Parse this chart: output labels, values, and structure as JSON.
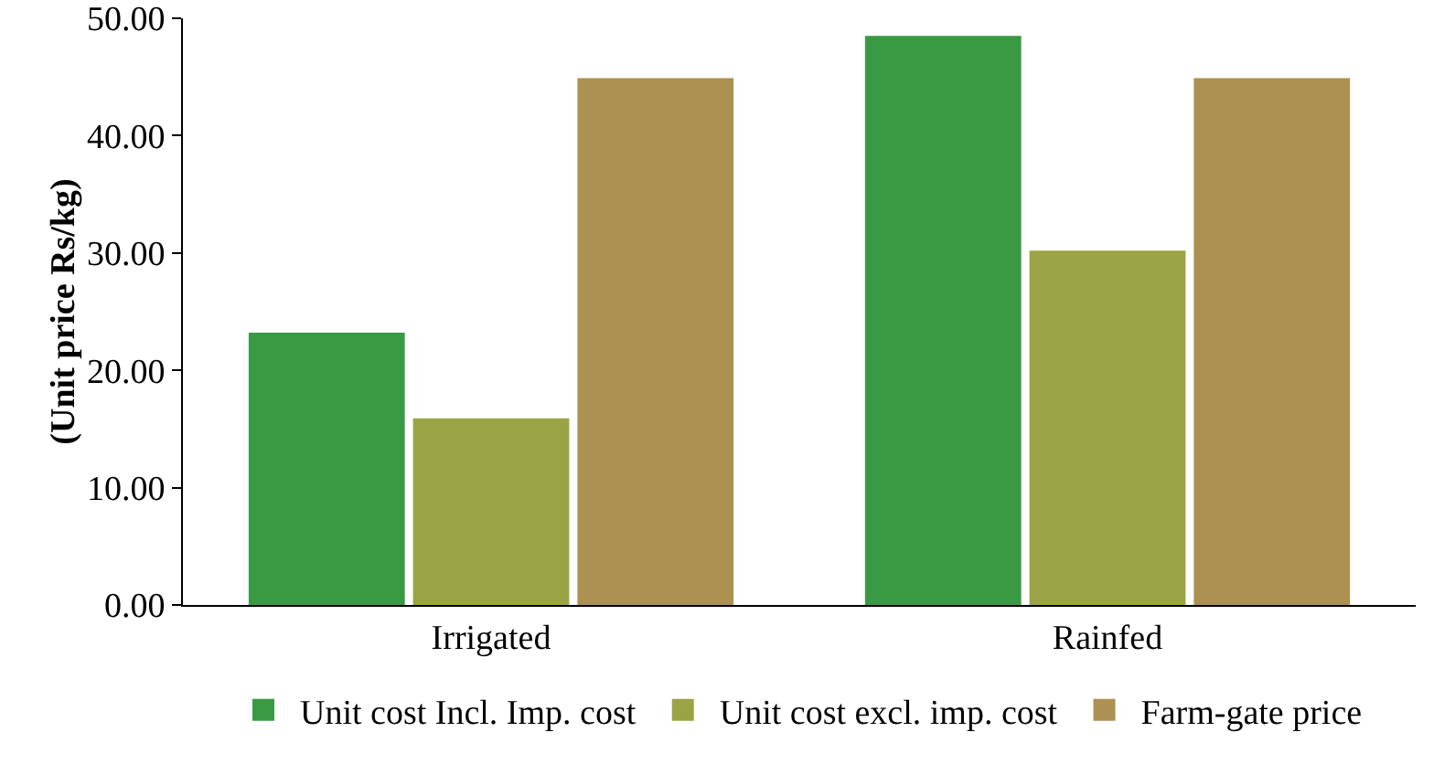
{
  "chart_data": {
    "type": "bar",
    "ylabel": "(Unit price Rs/kg)",
    "categories": [
      "Irrigated",
      "Rainfed"
    ],
    "series": [
      {
        "name": "Unit cost Incl. Imp. cost",
        "color": "#3a9a43",
        "values": [
          23.2,
          48.5
        ]
      },
      {
        "name": "Unit cost excl. imp. cost",
        "color": "#9ba445",
        "values": [
          15.9,
          30.2
        ]
      },
      {
        "name": "Farm-gate price",
        "color": "#ad9152",
        "values": [
          44.9,
          44.9
        ]
      }
    ],
    "ylim": [
      0,
      50
    ],
    "yticks": [
      {
        "value": 0,
        "label": "0.00"
      },
      {
        "value": 10,
        "label": "10.00"
      },
      {
        "value": 20,
        "label": "20.00"
      },
      {
        "value": 30,
        "label": "30.00"
      },
      {
        "value": 40,
        "label": "40.00"
      },
      {
        "value": 50,
        "label": "50.00"
      }
    ],
    "grid": false,
    "legend": "bottom"
  }
}
